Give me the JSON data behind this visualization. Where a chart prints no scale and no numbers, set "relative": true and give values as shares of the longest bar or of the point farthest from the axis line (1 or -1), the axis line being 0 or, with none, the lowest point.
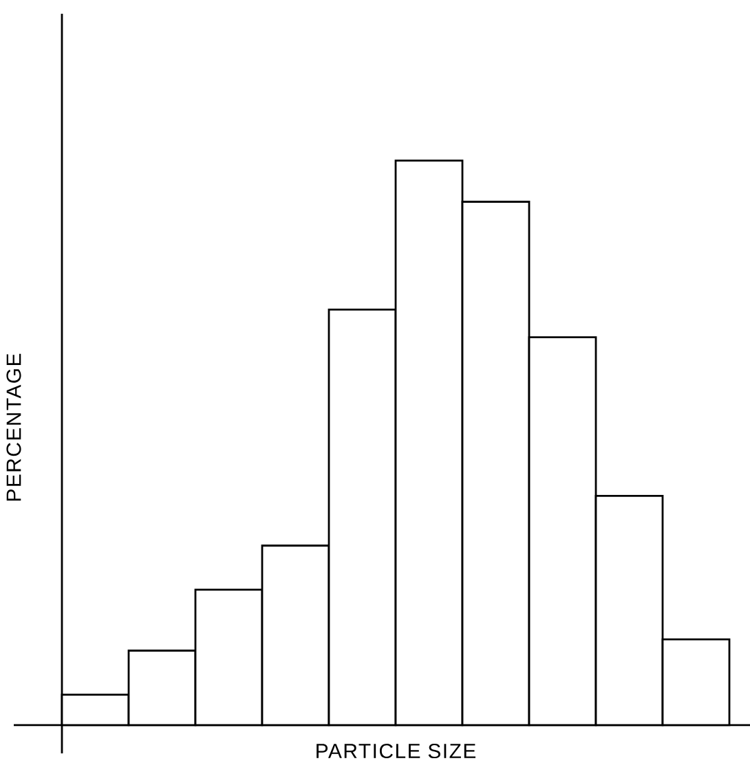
{
  "chart_data": {
    "type": "bar",
    "relative": true,
    "xlabel": "PARTICLE SIZE",
    "ylabel": "PERCENTAGE",
    "color": "#ffffff",
    "categories": [
      null,
      null,
      null,
      null,
      null,
      null,
      null,
      null,
      null,
      null
    ],
    "values": [
      0.054,
      0.132,
      0.24,
      0.318,
      0.736,
      1,
      0.927,
      0.687,
      0.406,
      0.152
    ]
  }
}
